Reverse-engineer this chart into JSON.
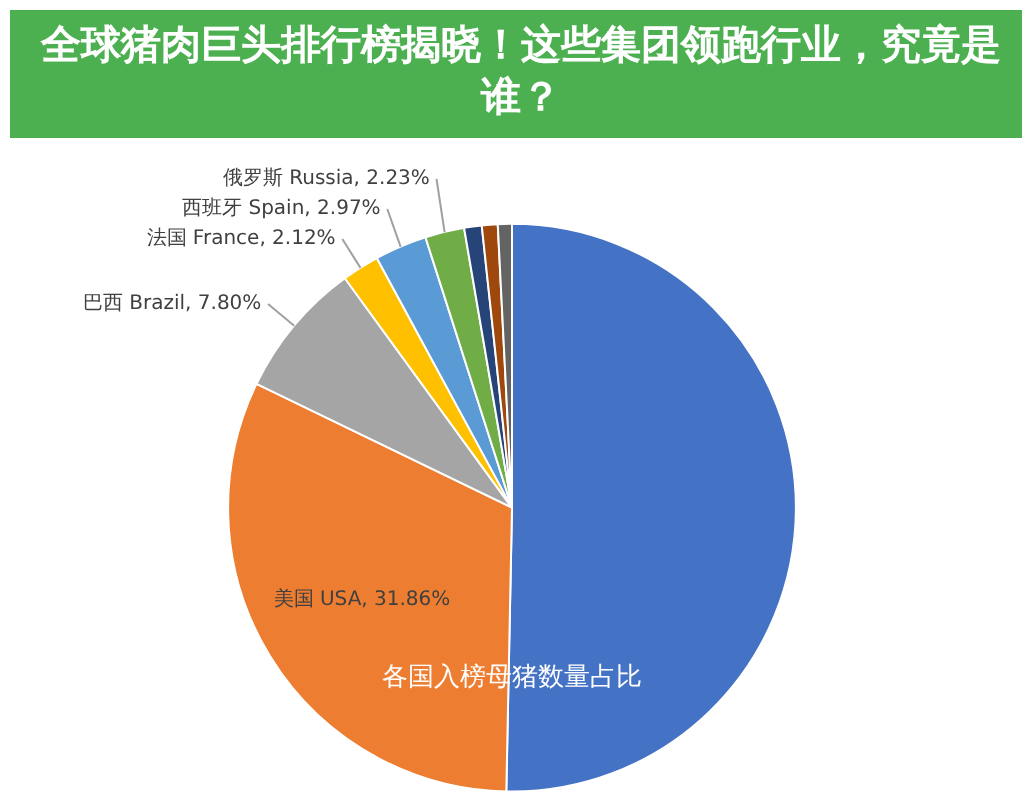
{
  "chart_data": {
    "type": "pie",
    "title": "全球猪肉巨头排行榜揭晓！这些集团领跑行业，究竟是谁？",
    "categories": [
      null,
      "美国 USA",
      "巴西 Brazil",
      "法国 France",
      "西班牙 Spain",
      "俄罗斯 Russia",
      null,
      null,
      null
    ],
    "values": [
      50.32,
      31.86,
      7.8,
      2.12,
      2.97,
      2.23,
      1.0,
      0.9,
      0.8
    ],
    "value_labels": [
      null,
      "31.86%",
      "7.80%",
      "2.12%",
      "2.97%",
      "2.23%",
      null,
      null,
      null
    ],
    "colors": [
      "#4472c4",
      "#ed7d31",
      "#a5a5a5",
      "#ffc000",
      "#5b9bd5",
      "#70ad47",
      "#264478",
      "#9e480e",
      "#636363"
    ],
    "annotations": [
      "各国入榜母猪数量占比"
    ]
  }
}
